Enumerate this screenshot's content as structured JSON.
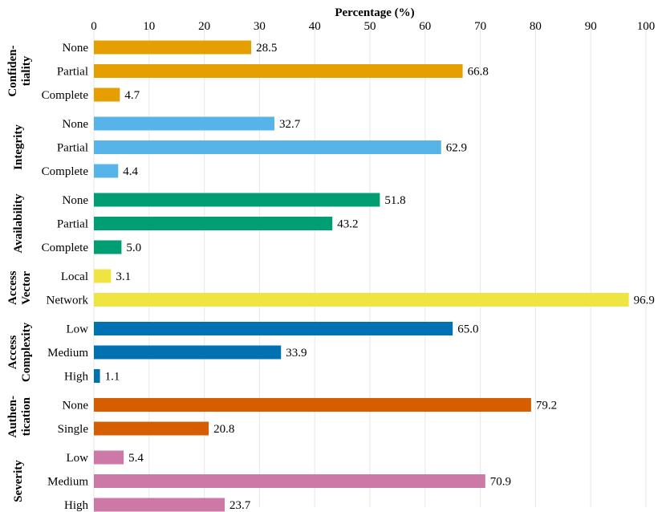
{
  "chart_data": {
    "type": "bar",
    "orientation": "horizontal",
    "xlabel": "Percentage (%)",
    "xlim": [
      0,
      100
    ],
    "xticks": [
      "0",
      "10",
      "20",
      "30",
      "40",
      "50",
      "60",
      "70",
      "80",
      "90",
      "100"
    ],
    "grid": true,
    "groups": [
      {
        "name": "Confiden-\ntiality",
        "color": "#e69f00",
        "categories": [
          "None",
          "Partial",
          "Complete"
        ],
        "values": [
          28.5,
          66.8,
          4.7
        ],
        "labels": [
          "28.5",
          "66.8",
          "4.7"
        ]
      },
      {
        "name": "Integrity",
        "color": "#56b4e9",
        "categories": [
          "None",
          "Partial",
          "Complete"
        ],
        "values": [
          32.7,
          62.9,
          4.4
        ],
        "labels": [
          "32.7",
          "62.9",
          "4.4"
        ]
      },
      {
        "name": "Availability",
        "color": "#009e73",
        "categories": [
          "None",
          "Partial",
          "Complete"
        ],
        "values": [
          51.8,
          43.2,
          5.0
        ],
        "labels": [
          "51.8",
          "43.2",
          "5.0"
        ]
      },
      {
        "name": "Access\nVector",
        "color": "#f0e442",
        "categories": [
          "Local",
          "Network"
        ],
        "values": [
          3.1,
          96.9
        ],
        "labels": [
          "3.1",
          "96.9"
        ]
      },
      {
        "name": "Access\nComplexity",
        "color": "#0072b2",
        "categories": [
          "Low",
          "Medium",
          "High"
        ],
        "values": [
          65.0,
          33.9,
          1.1
        ],
        "labels": [
          "65.0",
          "33.9",
          "1.1"
        ]
      },
      {
        "name": "Authen-\ntication",
        "color": "#d55e00",
        "categories": [
          "None",
          "Single"
        ],
        "values": [
          79.2,
          20.8
        ],
        "labels": [
          "79.2",
          "20.8"
        ]
      },
      {
        "name": "Severity",
        "color": "#cc79a7",
        "categories": [
          "Low",
          "Medium",
          "High"
        ],
        "values": [
          5.4,
          70.9,
          23.7
        ],
        "labels": [
          "5.4",
          "70.9",
          "23.7"
        ]
      }
    ]
  }
}
